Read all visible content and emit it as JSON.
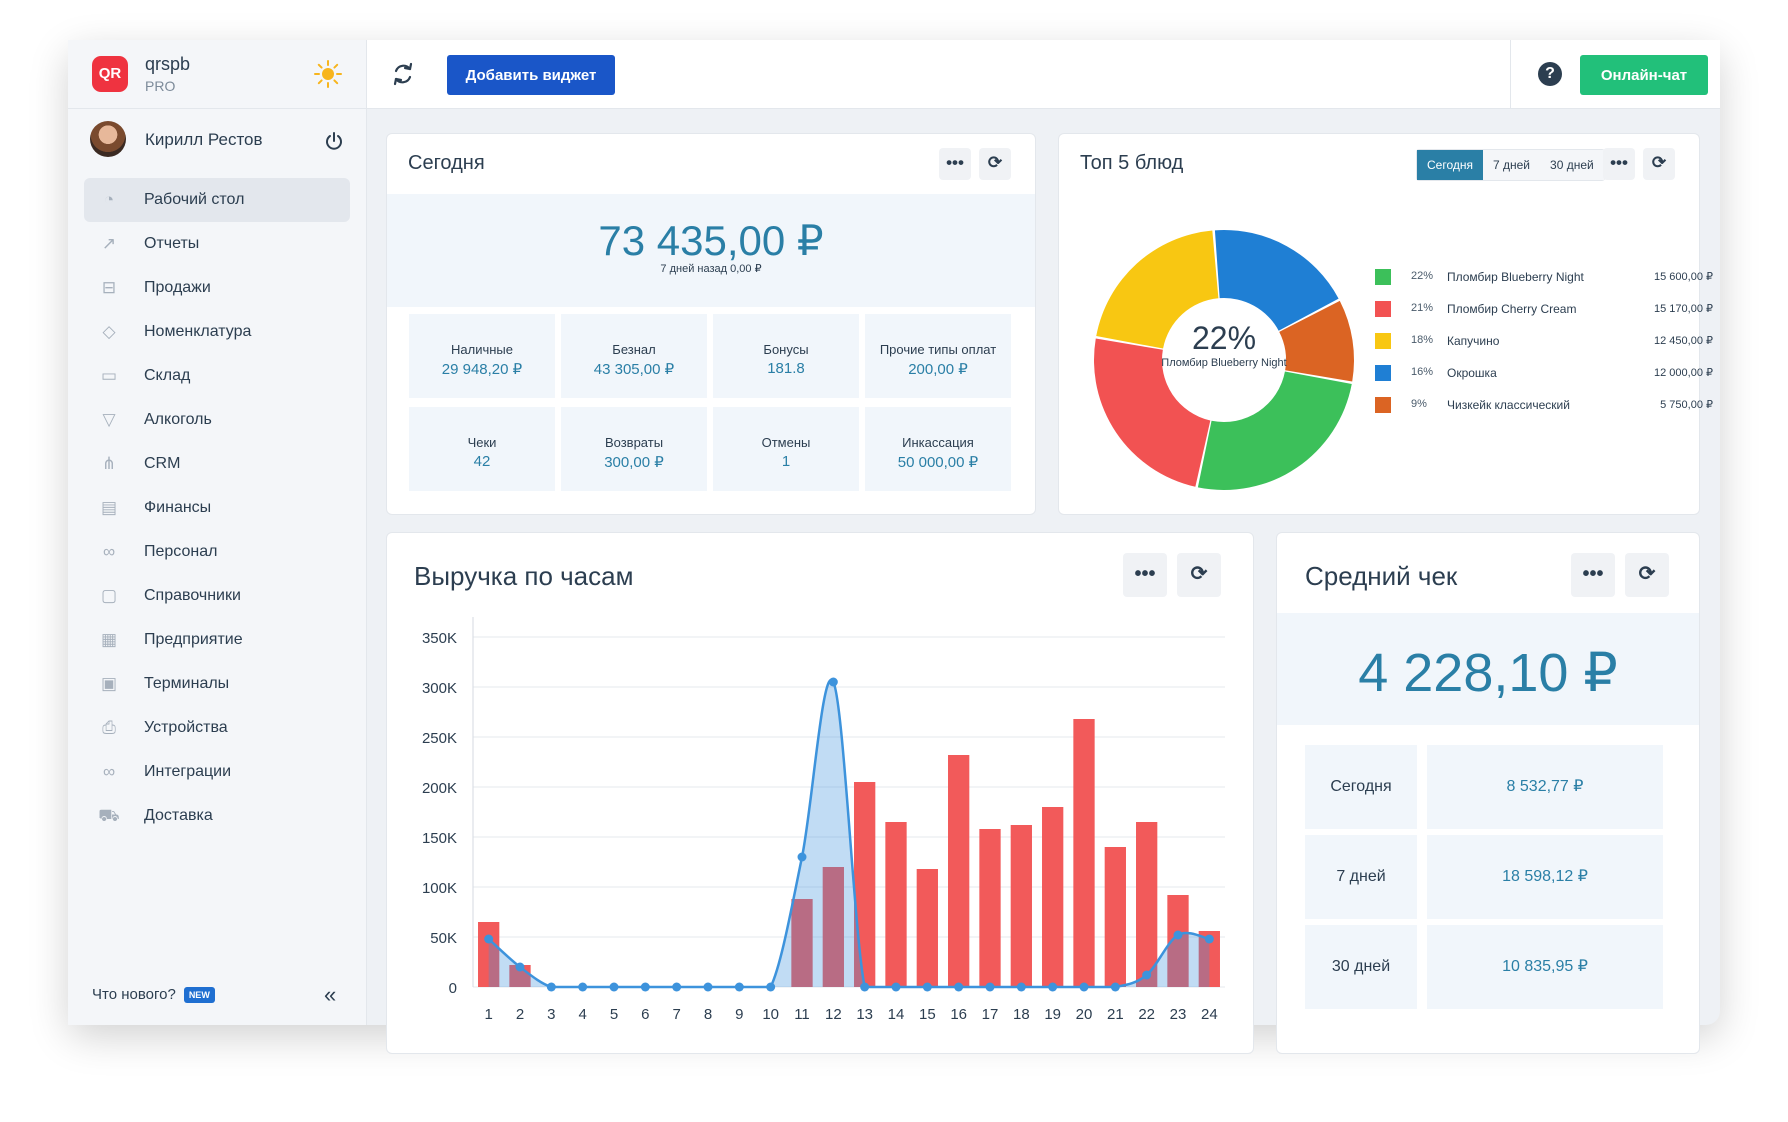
{
  "brand": {
    "name": "qrspb",
    "plan": "PRO",
    "logo_text": "QR"
  },
  "user": {
    "name": "Кирилл Рестов"
  },
  "nav": [
    {
      "label": "Рабочий стол",
      "icon": "dashboard-icon",
      "active": true
    },
    {
      "label": "Отчеты",
      "icon": "chart-icon"
    },
    {
      "label": "Продажи",
      "icon": "basket-icon"
    },
    {
      "label": "Номенклатура",
      "icon": "tag-icon"
    },
    {
      "label": "Склад",
      "icon": "box-icon"
    },
    {
      "label": "Алкоголь",
      "icon": "glass-icon"
    },
    {
      "label": "CRM",
      "icon": "hierarchy-icon"
    },
    {
      "label": "Финансы",
      "icon": "wallet-icon"
    },
    {
      "label": "Персонал",
      "icon": "people-icon"
    },
    {
      "label": "Справочники",
      "icon": "book-icon"
    },
    {
      "label": "Предприятие",
      "icon": "building-icon"
    },
    {
      "label": "Терминалы",
      "icon": "qr-terminal-icon"
    },
    {
      "label": "Устройства",
      "icon": "printer-icon"
    },
    {
      "label": "Интеграции",
      "icon": "infinity-icon"
    },
    {
      "label": "Доставка",
      "icon": "truck-icon"
    }
  ],
  "footer": {
    "whats_new": "Что нового?",
    "badge": "NEW"
  },
  "topbar": {
    "add_widget": "Добавить виджет",
    "chat": "Онлайн-чат",
    "help": "?"
  },
  "today": {
    "title": "Сегодня",
    "amount": "73 435,00 ₽",
    "sub": "7 дней назад 0,00 ₽",
    "stats": [
      {
        "label": "Наличные",
        "value": "29 948,20 ₽"
      },
      {
        "label": "Безнал",
        "value": "43 305,00 ₽"
      },
      {
        "label": "Бонусы",
        "value": "181.8"
      },
      {
        "label": "Прочие типы оплат",
        "value": "200,00 ₽"
      },
      {
        "label": "Чеки",
        "value": "42"
      },
      {
        "label": "Возвраты",
        "value": "300,00 ₽"
      },
      {
        "label": "Отмены",
        "value": "1"
      },
      {
        "label": "Инкассация",
        "value": "50 000,00 ₽"
      }
    ]
  },
  "top5": {
    "title": "Топ 5 блюд",
    "periods": [
      "Сегодня",
      "7 дней",
      "30 дней"
    ],
    "active_period": "Сегодня",
    "center_pct": "22%",
    "center_name": "Пломбир Blueberry Night",
    "items": [
      {
        "pct": "22%",
        "name": "Пломбир Blueberry Night",
        "value": "15 600,00 ₽",
        "share": 22,
        "color": "#3cc05a"
      },
      {
        "pct": "21%",
        "name": "Пломбир Cherry Cream",
        "value": "15 170,00 ₽",
        "share": 21,
        "color": "#f25252"
      },
      {
        "pct": "18%",
        "name": "Капучино",
        "value": "12 450,00 ₽",
        "share": 18,
        "color": "#f8c712"
      },
      {
        "pct": "16%",
        "name": "Окрошка",
        "value": "12 000,00 ₽",
        "share": 16,
        "color": "#1f7fd4"
      },
      {
        "pct": "9%",
        "name": "Чизкейк классический",
        "value": "5 750,00 ₽",
        "share": 9,
        "color": "#db6423"
      }
    ]
  },
  "avg": {
    "title": "Средний чек",
    "amount": "4 228,10 ₽",
    "rows": [
      {
        "label": "Сегодня",
        "value": "8 532,77 ₽"
      },
      {
        "label": "7 дней",
        "value": "18 598,12 ₽"
      },
      {
        "label": "30 дней",
        "value": "10 835,95 ₽"
      }
    ]
  },
  "chart_data": {
    "title": "Выручка по часам",
    "type": "bar",
    "categories": [
      "1",
      "2",
      "3",
      "4",
      "5",
      "6",
      "7",
      "8",
      "9",
      "10",
      "11",
      "12",
      "13",
      "14",
      "15",
      "16",
      "17",
      "18",
      "19",
      "20",
      "21",
      "22",
      "23",
      "24"
    ],
    "y_ticks": [
      "0",
      "50K",
      "100K",
      "150K",
      "200K",
      "250K",
      "300K",
      "350K"
    ],
    "ylim": [
      0,
      350000
    ],
    "series": [
      {
        "type": "bar",
        "color": "#f25a5a",
        "values": [
          65000,
          22000,
          0,
          0,
          0,
          0,
          0,
          0,
          0,
          0,
          88000,
          120000,
          205000,
          165000,
          118000,
          232000,
          158000,
          162000,
          180000,
          268000,
          140000,
          165000,
          92000,
          56000
        ]
      },
      {
        "type": "line",
        "color": "#3d93dc",
        "values": [
          48000,
          20000,
          0,
          0,
          0,
          0,
          0,
          0,
          0,
          0,
          130000,
          305000,
          0,
          0,
          0,
          0,
          0,
          0,
          0,
          0,
          0,
          12000,
          52000,
          48000
        ]
      }
    ]
  }
}
